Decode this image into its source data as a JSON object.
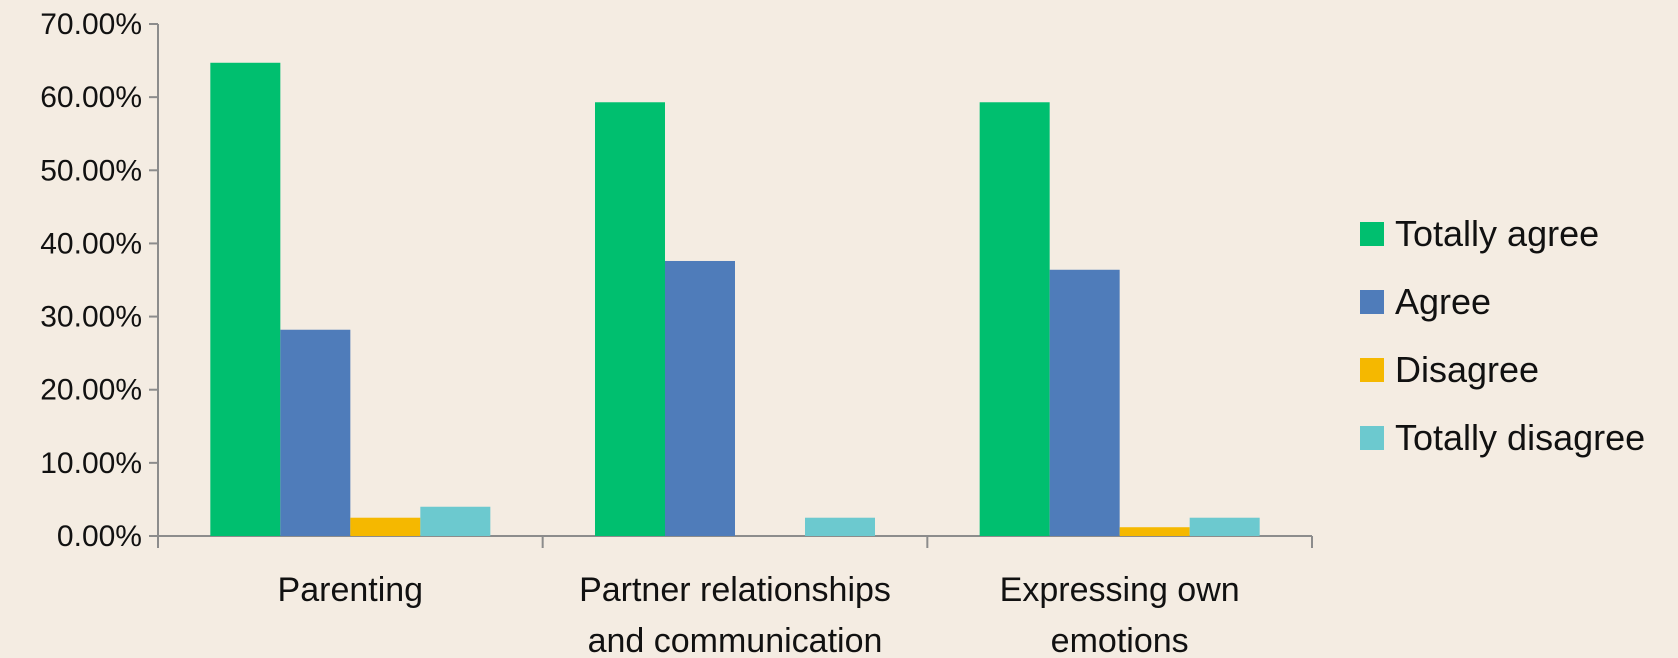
{
  "chart_data": {
    "type": "bar",
    "title": "",
    "xlabel": "",
    "ylabel": "",
    "ylim": [
      0,
      70
    ],
    "yticks": [
      0,
      10,
      20,
      30,
      40,
      50,
      60,
      70
    ],
    "ytick_labels": [
      "0.00%",
      "10.00%",
      "20.00%",
      "30.00%",
      "40.00%",
      "50.00%",
      "60.00%",
      "70.00%"
    ],
    "categories": [
      [
        "Parenting"
      ],
      [
        "Partner relationships",
        "and communication"
      ],
      [
        "Expressing own",
        "emotions"
      ]
    ],
    "series": [
      {
        "name": "Totally agree",
        "color": "#00bf6f",
        "values": [
          64.7,
          59.3,
          59.3
        ]
      },
      {
        "name": "Agree",
        "color": "#4f7cba",
        "values": [
          28.2,
          37.6,
          36.4
        ]
      },
      {
        "name": "Disagree",
        "color": "#f5b800",
        "values": [
          2.5,
          0.0,
          1.2
        ]
      },
      {
        "name": "Totally disagree",
        "color": "#6cc9cf",
        "values": [
          4.0,
          2.5,
          2.5
        ]
      }
    ],
    "grid": false,
    "legend_position": "right"
  }
}
